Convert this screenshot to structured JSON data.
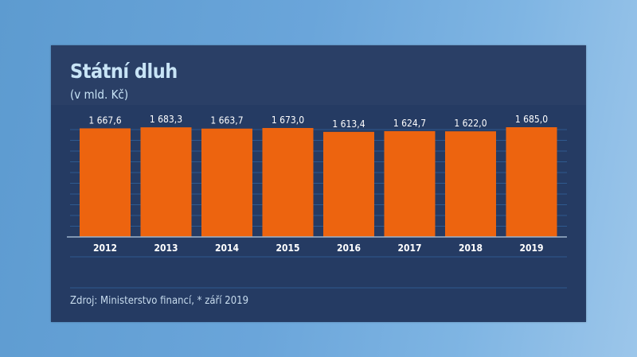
{
  "chart_data": {
    "type": "bar",
    "title": "Státní dluh",
    "subtitle": "(v mld. Kč)",
    "categories": [
      "2012",
      "2013",
      "2014",
      "2015",
      "2016",
      "2017",
      "2018",
      "2019"
    ],
    "values": [
      1667.6,
      1683.3,
      1663.7,
      1673.0,
      1613.4,
      1624.7,
      1622.0,
      1685.0
    ],
    "value_labels": [
      "1 667,6",
      "1 683,3",
      "1 663,7",
      "1 673,0",
      "1 613,4",
      "1 624,7",
      "1 622,0",
      "1 685,0"
    ],
    "xlabel": "",
    "ylabel": "",
    "ylim": [
      0,
      1685
    ],
    "grid": true,
    "source": "Zdroj: Ministerstvo financí, * září 2019",
    "colors": {
      "bar": "#ed640f",
      "panel": "#253b63",
      "text": "#ffffff",
      "grid": "#2f5a8f"
    }
  }
}
